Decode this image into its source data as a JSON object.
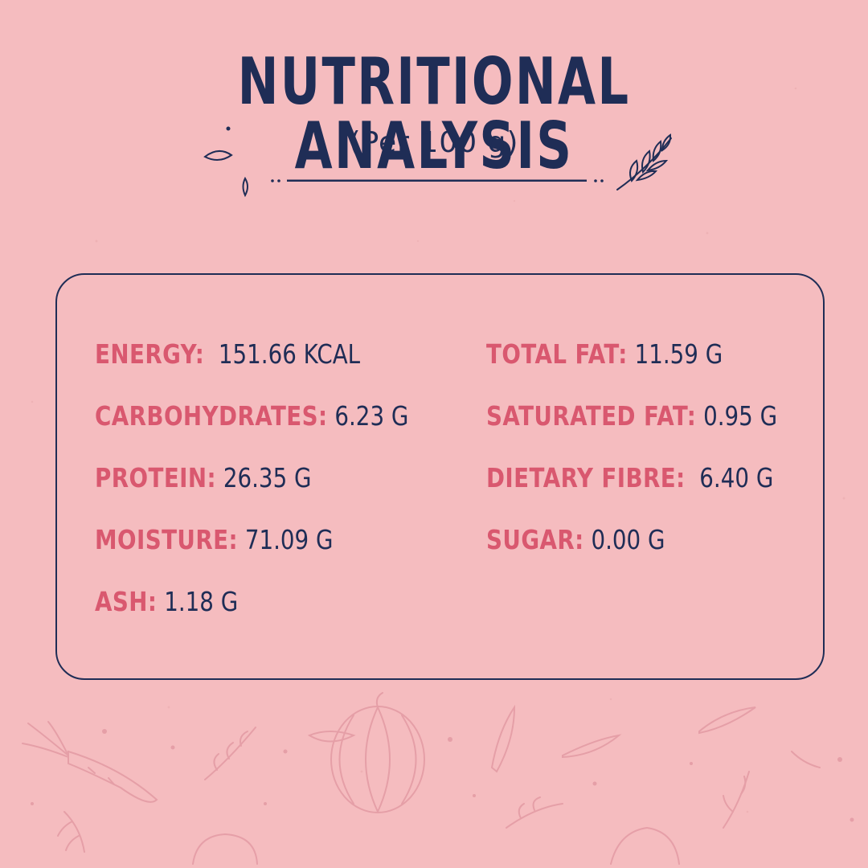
{
  "header": {
    "title": "NUTRITIONAL ANALYSIS",
    "subtitle": "(Per 100 g)"
  },
  "nutrients": {
    "left": [
      {
        "label": "ENERGY:",
        "value": "151.66 KCAL"
      },
      {
        "label": "CARBOHYDRATES:",
        "value": "6.23 G"
      },
      {
        "label": "PROTEIN:",
        "value": "26.35 G"
      },
      {
        "label": "MOISTURE:",
        "value": "71.09 G"
      },
      {
        "label": "ASH:",
        "value": "1.18 G"
      }
    ],
    "right": [
      {
        "label": "TOTAL FAT:",
        "value": "11.59 G"
      },
      {
        "label": "SATURATED FAT:",
        "value": "0.95 G"
      },
      {
        "label": "DIETARY FIBRE:",
        "value": "6.40 G"
      },
      {
        "label": "SUGAR:",
        "value": "0.00 G"
      }
    ]
  },
  "colors": {
    "background": "#f5bcbf",
    "heading": "#1f2d56",
    "label": "#d9586f",
    "value": "#1f2d56",
    "doodle": "#e39aa3"
  },
  "icons": [
    "leaf-sprig-icon",
    "seed-icon",
    "carrot-doodle",
    "pumpkin-doodle",
    "herb-doodle"
  ]
}
